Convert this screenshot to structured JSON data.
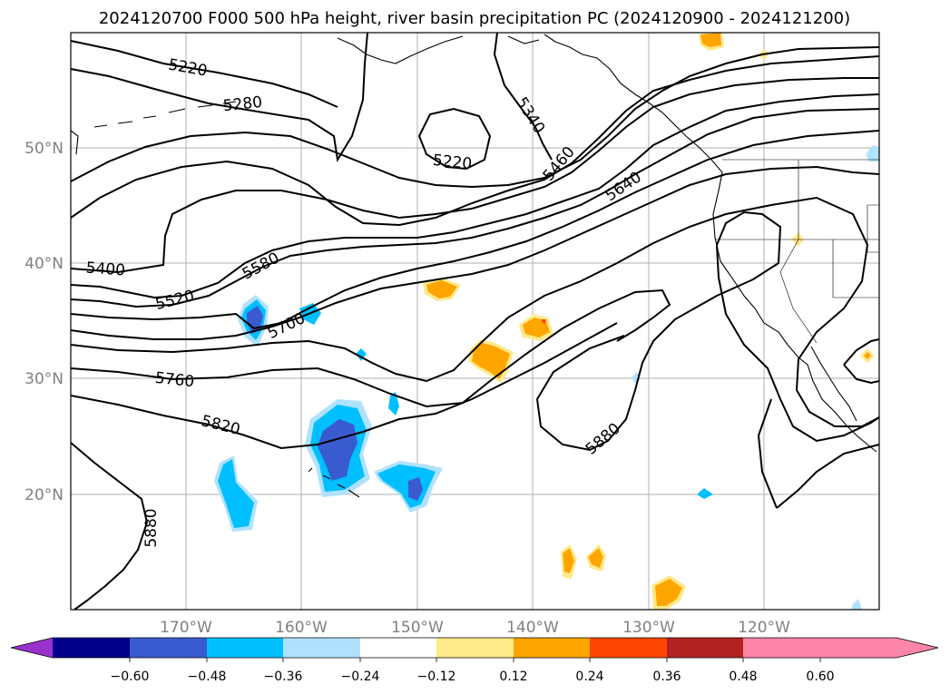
{
  "title": "2024120700 F000 500 hPa height, river basin precipitation PC (2024120900 - 2024121200)",
  "map": {
    "lon_labels": [
      "170°W",
      "160°W",
      "150°W",
      "140°W",
      "130°W",
      "120°W"
    ],
    "lat_labels": [
      "50°N",
      "40°N",
      "30°N",
      "20°N"
    ],
    "contour_labels": [
      "5220",
      "5280",
      "5340",
      "5220",
      "5460",
      "5640",
      "5400",
      "5580",
      "5520",
      "5700",
      "5760",
      "5820",
      "5880",
      "5880"
    ],
    "colors": {
      "contour": "#000000",
      "grid": "#b0b0b0",
      "neg_strong": "#3a5bd0",
      "neg_mid": "#00bfff",
      "neg_weak": "#b0e2ff",
      "pos_weak": "#ffe98a",
      "pos_mid": "#ffa500",
      "pos_strong": "#ff4500"
    }
  },
  "colorbar": {
    "ticks": [
      "−0.60",
      "−0.48",
      "−0.36",
      "−0.24",
      "−0.12",
      "0.12",
      "0.24",
      "0.36",
      "0.48",
      "0.60"
    ],
    "colors": [
      "#9932cc",
      "#00008b",
      "#3a5bd0",
      "#00bfff",
      "#b0e2ff",
      "#ffffff",
      "#ffe98a",
      "#ffa500",
      "#ff4500",
      "#b22222",
      "#ff85a8",
      "#ff85a8"
    ]
  }
}
